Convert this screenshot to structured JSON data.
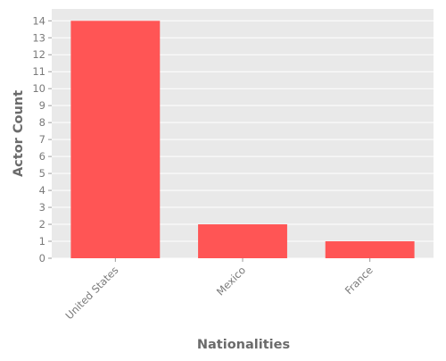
{
  "chart_data": {
    "type": "bar",
    "categories": [
      "United States",
      "Mexico",
      "France"
    ],
    "values": [
      14,
      2,
      1
    ],
    "xlabel": "Nationalities",
    "ylabel": "Actor Count",
    "ylim": [
      0,
      14.7
    ],
    "yticks": [
      0,
      1,
      2,
      3,
      4,
      5,
      6,
      7,
      8,
      9,
      10,
      11,
      12,
      13,
      14
    ],
    "grid": true,
    "bar_color": "#ff5555",
    "panel_background": "#e9e9e9",
    "grid_color": "#ffffff"
  }
}
